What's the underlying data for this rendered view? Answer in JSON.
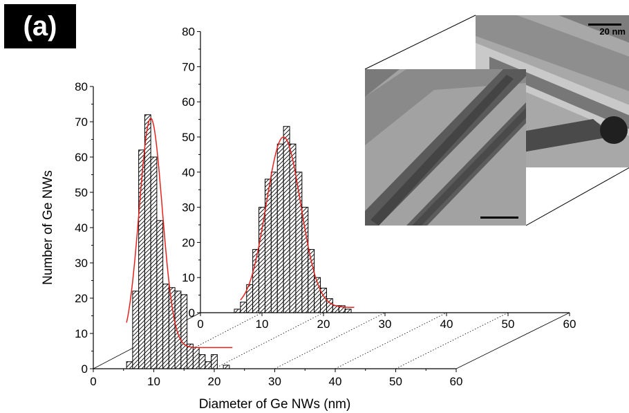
{
  "panel_label": "(a)",
  "chart_data": [
    {
      "type": "bar",
      "panel": "front",
      "xlabel": "Diameter of Ge NWs  (nm)",
      "ylabel": "Number of Ge NWs",
      "xlim": [
        0,
        60
      ],
      "ylim": [
        0,
        80
      ],
      "xticks": [
        "0",
        "10",
        "20",
        "30",
        "40",
        "50",
        "60"
      ],
      "yticks": [
        "0",
        "10",
        "20",
        "30",
        "40",
        "50",
        "60",
        "70",
        "80"
      ],
      "bin_width": 1,
      "bins": [
        6,
        7,
        8,
        9,
        10,
        11,
        12,
        13,
        14,
        15,
        16,
        17,
        18,
        19,
        20,
        21,
        22
      ],
      "values": [
        2,
        22,
        62,
        72,
        60,
        42,
        24,
        23,
        22,
        21,
        7,
        6,
        4,
        2,
        4,
        0,
        1
      ],
      "fit": {
        "center": 9.5,
        "sigma": 1.9,
        "amplitude": 65,
        "offset": 6,
        "xrange": [
          5.5,
          23
        ],
        "color": "#e8201c"
      }
    },
    {
      "type": "bar",
      "panel": "back",
      "xlim": [
        0,
        60
      ],
      "ylim": [
        0,
        80
      ],
      "xticks": [
        "0",
        "10",
        "20",
        "30",
        "40",
        "50",
        "60"
      ],
      "yticks": [
        "0",
        "10",
        "20",
        "30",
        "40",
        "50",
        "60",
        "70",
        "80"
      ],
      "bin_width": 1,
      "bins": [
        6,
        7,
        8,
        9,
        10,
        11,
        12,
        13,
        14,
        15,
        16,
        17,
        18,
        19,
        20,
        21,
        22,
        23,
        24
      ],
      "values": [
        1,
        3,
        8,
        18,
        30,
        38,
        40,
        48,
        53,
        48,
        40,
        30,
        18,
        10,
        7,
        4,
        2,
        2,
        1
      ],
      "fit": {
        "center": 13.5,
        "sigma": 2.8,
        "amplitude": 48.5,
        "offset": 1.5,
        "xrange": [
          6.5,
          25
        ],
        "color": "#e8201c"
      }
    }
  ],
  "inset": {
    "scale_label": "20 nm"
  }
}
